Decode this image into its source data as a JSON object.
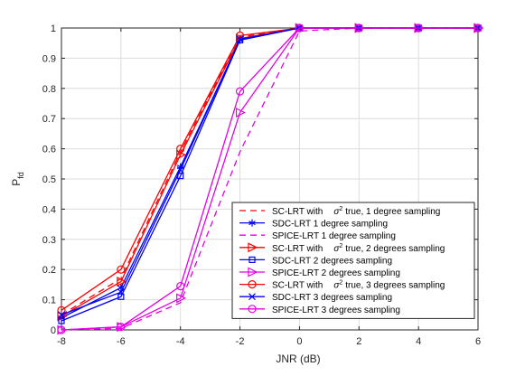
{
  "chart_data": {
    "type": "line",
    "title": "",
    "xlabel": "JNR (dB)",
    "ylabel": "P",
    "ylabel_sub": "fd",
    "xlim": [
      -8,
      6
    ],
    "ylim": [
      0,
      1
    ],
    "xticks": [
      -8,
      -6,
      -4,
      -2,
      0,
      2,
      4,
      6
    ],
    "yticks": [
      0,
      0.1,
      0.2,
      0.3,
      0.4,
      0.5,
      0.6,
      0.7,
      0.8,
      0.9,
      1
    ],
    "xtick_labels": [
      "-8",
      "-6",
      "-4",
      "-2",
      "0",
      "2",
      "4",
      "6"
    ],
    "ytick_labels": [
      "0",
      "0.1",
      "0.2",
      "0.3",
      "0.4",
      "0.5",
      "0.6",
      "0.7",
      "0.8",
      "0.9",
      "1"
    ],
    "grid": true,
    "legend_position": "bottom-right",
    "x": [
      -8,
      -6,
      -4,
      -2,
      0,
      2,
      4,
      6
    ],
    "series": [
      {
        "name": "SC-LRT with σ² true, 1 degree sampling",
        "legend_pre": "SC-LRT with",
        "legend_sup": "2",
        "legend_post": "true, 1 degree sampling",
        "color": "#ff0000",
        "dash": "dashed",
        "marker": "none",
        "values": [
          0.05,
          0.17,
          0.59,
          0.97,
          1,
          1,
          1,
          1
        ]
      },
      {
        "name": "SDC-LRT 1 degree sampling",
        "legend_pre": "SDC-LRT 1 degree sampling",
        "color": "#0000ff",
        "dash": "solid",
        "marker": "asterisk",
        "values": [
          0.04,
          0.14,
          0.54,
          0.96,
          1,
          1,
          1,
          1
        ]
      },
      {
        "name": "SPICE-LRT 1 degree sampling",
        "legend_pre": "SPICE-LRT 1 degree sampling",
        "color": "#e600e6",
        "dash": "dashed",
        "marker": "none",
        "values": [
          0.0,
          0.005,
          0.09,
          0.59,
          0.99,
          1,
          1,
          1
        ]
      },
      {
        "name": "SC-LRT with σ² true, 2 degrees sampling",
        "legend_pre": "SC-LRT with",
        "legend_sup": "2",
        "legend_post": "true, 2 degrees sampling",
        "color": "#ff0000",
        "dash": "solid",
        "marker": "triangle-right",
        "values": [
          0.045,
          0.16,
          0.58,
          0.965,
          1,
          1,
          1,
          1
        ]
      },
      {
        "name": "SDC-LRT 2 degrees sampling",
        "legend_pre": "SDC-LRT 2 degrees sampling",
        "color": "#0000ff",
        "dash": "solid",
        "marker": "square",
        "values": [
          0.03,
          0.11,
          0.51,
          0.96,
          1,
          1,
          1,
          1
        ]
      },
      {
        "name": "SPICE-LRT 2 degrees sampling",
        "legend_pre": "SPICE-LRT 2 degrees sampling",
        "color": "#e600e6",
        "dash": "solid",
        "marker": "triangle-right",
        "values": [
          0.0,
          0.01,
          0.105,
          0.72,
          1,
          1,
          1,
          1
        ]
      },
      {
        "name": "SC-LRT with σ² true, 3 degrees sampling",
        "legend_pre": "SC-LRT with",
        "legend_sup": "2",
        "legend_post": "true, 3 degrees sampling",
        "color": "#ff0000",
        "dash": "solid",
        "marker": "circle",
        "values": [
          0.065,
          0.2,
          0.6,
          0.975,
          1,
          1,
          1,
          1
        ]
      },
      {
        "name": "SDC-LRT 3 degrees sampling",
        "legend_pre": "SDC-LRT 3 degrees sampling",
        "color": "#0000ff",
        "dash": "solid",
        "marker": "x",
        "values": [
          0.05,
          0.125,
          0.53,
          0.963,
          1,
          1,
          1,
          1
        ]
      },
      {
        "name": "SPICE-LRT 3 degrees sampling",
        "legend_pre": "SPICE-LRT 3 degrees sampling",
        "color": "#e600e6",
        "dash": "solid",
        "marker": "circle",
        "values": [
          0.0,
          0.01,
          0.145,
          0.79,
          1,
          1,
          1,
          1
        ]
      }
    ]
  }
}
